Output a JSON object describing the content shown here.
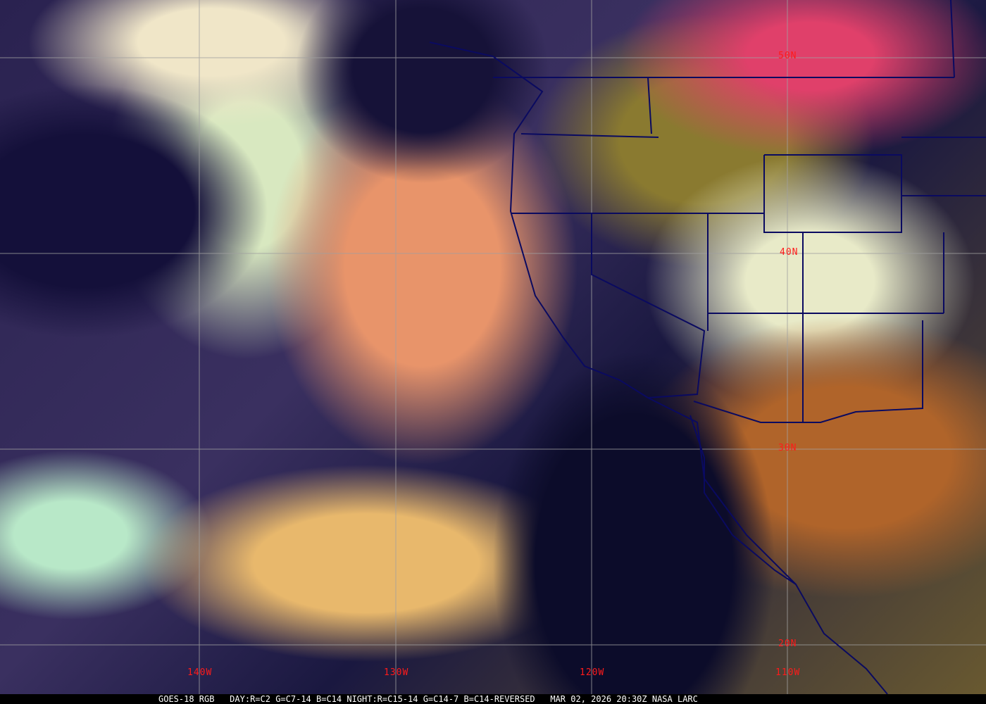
{
  "image": {
    "type": "satellite-rgb-composite",
    "colors": {
      "grid": "#a0a0a0",
      "borders": "#0a0a60",
      "labels": "#ff1a1a"
    }
  },
  "grid_labels": {
    "latitudes": [
      "50N",
      "40N",
      "30N",
      "20N"
    ],
    "longitudes": [
      "140W",
      "130W",
      "120W",
      "110W"
    ]
  },
  "caption": {
    "satellite": "GOES-18 RGB",
    "bands": "DAY:R=C2 G=C7-14 B=C14 NIGHT:R=C15-14 G=C14-7 B=C14-REVERSED",
    "datetime": "MAR 02, 2026 20:30Z",
    "credit": "NASA LARC"
  }
}
